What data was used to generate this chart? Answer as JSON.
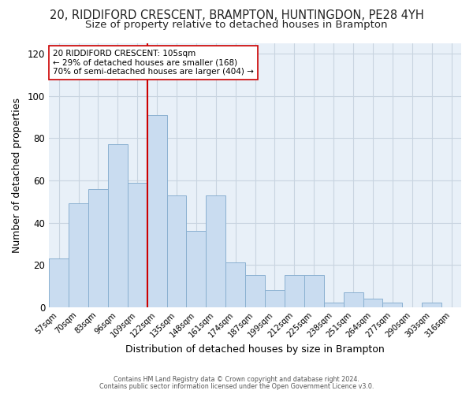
{
  "title": "20, RIDDIFORD CRESCENT, BRAMPTON, HUNTINGDON, PE28 4YH",
  "subtitle": "Size of property relative to detached houses in Brampton",
  "xlabel": "Distribution of detached houses by size in Brampton",
  "ylabel": "Number of detached properties",
  "bar_labels": [
    "57sqm",
    "70sqm",
    "83sqm",
    "96sqm",
    "109sqm",
    "122sqm",
    "135sqm",
    "148sqm",
    "161sqm",
    "174sqm",
    "187sqm",
    "199sqm",
    "212sqm",
    "225sqm",
    "238sqm",
    "251sqm",
    "264sqm",
    "277sqm",
    "290sqm",
    "303sqm",
    "316sqm"
  ],
  "bar_values": [
    23,
    49,
    56,
    77,
    59,
    91,
    53,
    36,
    53,
    21,
    15,
    8,
    15,
    15,
    2,
    7,
    4,
    2,
    0,
    2,
    0
  ],
  "bar_color": "#c9dcf0",
  "bar_edge_color": "#8ab0d0",
  "vline_color": "#cc0000",
  "annotation_text": "20 RIDDIFORD CRESCENT: 105sqm\n← 29% of detached houses are smaller (168)\n70% of semi-detached houses are larger (404) →",
  "annotation_box_edgecolor": "#cc0000",
  "annotation_box_facecolor": "#ffffff",
  "ylim": [
    0,
    125
  ],
  "yticks": [
    0,
    20,
    40,
    60,
    80,
    100,
    120
  ],
  "footer1": "Contains HM Land Registry data © Crown copyright and database right 2024.",
  "footer2": "Contains public sector information licensed under the Open Government Licence v3.0.",
  "title_fontsize": 10.5,
  "subtitle_fontsize": 9.5,
  "background_color": "#ffffff",
  "plot_bg_color": "#e8f0f8",
  "grid_color": "#c8d4e0",
  "vline_bar_index": 4
}
